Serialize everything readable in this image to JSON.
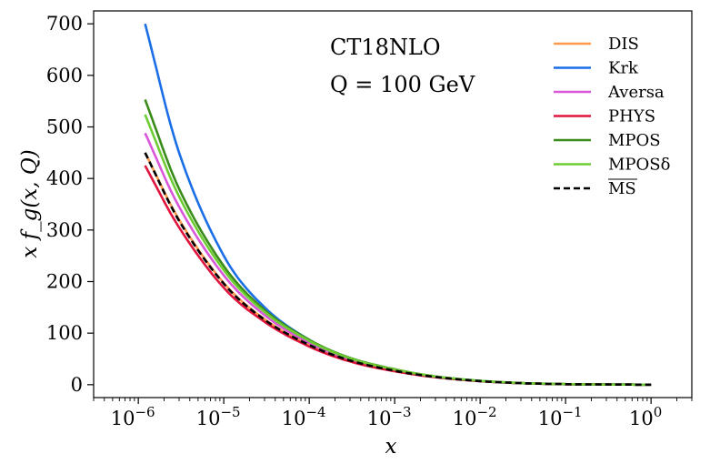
{
  "chart_data": {
    "type": "line",
    "title": "",
    "annotations": [
      "CT18NLO",
      "Q = 100 GeV"
    ],
    "xlabel": "x",
    "ylabel": "x f_g(x, Q)",
    "xscale": "log",
    "xlim": [
      3e-07,
      3
    ],
    "ylim": [
      -25,
      725
    ],
    "grid": false,
    "legend_position": "top-right",
    "x_ticks": [
      {
        "value": 1e-06,
        "base": "10",
        "exp": "−6"
      },
      {
        "value": 1e-05,
        "base": "10",
        "exp": "−5"
      },
      {
        "value": 0.0001,
        "base": "10",
        "exp": "−4"
      },
      {
        "value": 0.001,
        "base": "10",
        "exp": "−3"
      },
      {
        "value": 0.01,
        "base": "10",
        "exp": "−2"
      },
      {
        "value": 0.1,
        "base": "10",
        "exp": "−1"
      },
      {
        "value": 1,
        "base": "10",
        "exp": "0"
      }
    ],
    "y_ticks": [
      {
        "value": 0,
        "label": "0"
      },
      {
        "value": 100,
        "label": "100"
      },
      {
        "value": 200,
        "label": "200"
      },
      {
        "value": 300,
        "label": "300"
      },
      {
        "value": 400,
        "label": "400"
      },
      {
        "value": 500,
        "label": "500"
      },
      {
        "value": 600,
        "label": "600"
      },
      {
        "value": 700,
        "label": "700"
      }
    ],
    "x": [
      1.2e-06,
      3e-06,
      1e-05,
      3e-05,
      0.0001,
      0.0003,
      0.001,
      0.003,
      0.01,
      0.03,
      0.1,
      0.3,
      1
    ],
    "series": [
      {
        "name": "DIS",
        "color": "#ff9a4d",
        "dashed": false,
        "values": [
          450,
          320,
          197,
          127,
          77,
          47,
          27,
          15,
          7,
          3,
          1,
          0.4,
          0
        ]
      },
      {
        "name": "Krk",
        "color": "#1a6ee6",
        "dashed": false,
        "values": [
          700,
          450,
          250,
          150,
          87,
          51,
          28,
          15.5,
          7,
          3,
          1,
          0.4,
          0
        ]
      },
      {
        "name": "Aversa",
        "color": "#d957d9",
        "dashed": false,
        "values": [
          488,
          345,
          212,
          135,
          81,
          49,
          28,
          15,
          7,
          3,
          1,
          0.4,
          0
        ]
      },
      {
        "name": "PHYS",
        "color": "#e0143c",
        "dashed": false,
        "values": [
          425,
          305,
          188,
          122,
          74,
          45,
          26,
          14.5,
          6.8,
          3,
          1,
          0.4,
          0
        ]
      },
      {
        "name": "MPOS",
        "color": "#3a8c1a",
        "dashed": false,
        "values": [
          553,
          380,
          230,
          145,
          87,
          52,
          30,
          16,
          7.5,
          3.2,
          1.1,
          0.4,
          0
        ]
      },
      {
        "name": "MPOSδ",
        "color": "#6ecc33",
        "dashed": false,
        "values": [
          524,
          365,
          222,
          141,
          85,
          51,
          29.5,
          16,
          7.4,
          3.2,
          1.1,
          0.4,
          0
        ]
      },
      {
        "name": "MS",
        "color": "#000000",
        "dashed": true,
        "values": [
          450,
          318,
          196,
          126,
          77,
          47,
          27,
          15,
          7,
          3,
          1,
          0.4,
          0
        ]
      }
    ]
  }
}
